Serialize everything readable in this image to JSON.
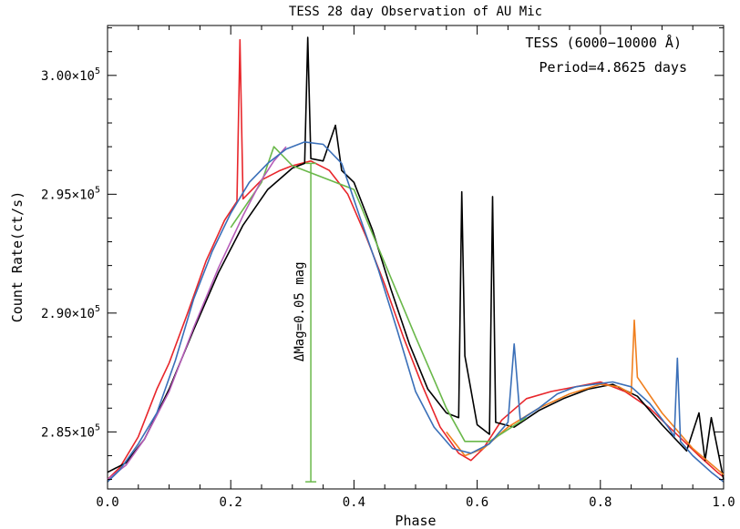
{
  "chart_data": {
    "type": "line",
    "title": "TESS 28 day Observation of AU Mic",
    "xlabel": "Phase",
    "ylabel": "Count Rate(ct/s)",
    "xlim": [
      0.0,
      1.0
    ],
    "ylim": [
      282600,
      302100
    ],
    "x_ticks": [
      {
        "value": 0.0,
        "label": "0.0"
      },
      {
        "value": 0.2,
        "label": "0.2"
      },
      {
        "value": 0.4,
        "label": "0.4"
      },
      {
        "value": 0.6,
        "label": "0.6"
      },
      {
        "value": 0.8,
        "label": "0.8"
      },
      {
        "value": 1.0,
        "label": "1.0"
      }
    ],
    "y_ticks": [
      {
        "value": 285000,
        "mantissa": "2.85",
        "times": "×10",
        "exp": "5"
      },
      {
        "value": 290000,
        "mantissa": "2.90",
        "times": "×10",
        "exp": "5"
      },
      {
        "value": 295000,
        "mantissa": "2.95",
        "times": "×10",
        "exp": "5"
      },
      {
        "value": 300000,
        "mantissa": "3.00",
        "times": "×10",
        "exp": "5"
      }
    ],
    "grid": false,
    "legend_position": "top-right",
    "legend": [
      {
        "text": "TESS (6000−10000 Å)",
        "color": "#e8262b"
      },
      {
        "text": "Period=4.8625 days",
        "color": "#3a6fb8"
      }
    ],
    "annotation": {
      "text": "ΔMag=0.05 mag",
      "color": "#6ab84a",
      "x": 0.33,
      "y_top": 296300,
      "y_bottom": 282900
    },
    "series": [
      {
        "color": "#e8262b",
        "x": [
          0.0,
          0.02,
          0.05,
          0.08,
          0.1,
          0.13,
          0.16,
          0.19,
          0.21,
          0.215,
          0.22,
          0.25,
          0.28,
          0.3,
          0.33,
          0.36,
          0.39,
          0.42,
          0.45,
          0.48,
          0.51,
          0.54,
          0.57,
          0.59,
          0.61,
          0.64,
          0.68,
          0.72,
          0.76,
          0.8,
          0.84,
          0.88,
          0.92,
          0.96,
          0.99,
          1.0
        ],
        "y": [
          283000,
          283500,
          284800,
          286800,
          287900,
          290000,
          292200,
          293900,
          294700,
          301500,
          294800,
          295600,
          296000,
          296200,
          296400,
          296000,
          295000,
          293200,
          291200,
          289000,
          287000,
          285200,
          284100,
          283800,
          284300,
          285500,
          286400,
          286700,
          286900,
          287100,
          286700,
          286000,
          285000,
          284000,
          283300,
          283100
        ]
      },
      {
        "color": "#000000",
        "x": [
          0.0,
          0.03,
          0.06,
          0.1,
          0.14,
          0.18,
          0.22,
          0.26,
          0.3,
          0.32,
          0.325,
          0.33,
          0.35,
          0.37,
          0.38,
          0.4,
          0.43,
          0.46,
          0.49,
          0.52,
          0.55,
          0.57,
          0.575,
          0.58,
          0.6,
          0.62,
          0.625,
          0.63,
          0.66,
          0.7,
          0.74,
          0.78,
          0.82,
          0.86,
          0.9,
          0.94,
          0.96,
          0.97,
          0.98,
          1.0
        ],
        "y": [
          283300,
          283700,
          284700,
          286800,
          289300,
          291700,
          293700,
          295200,
          296100,
          296300,
          301600,
          296500,
          296400,
          297900,
          296000,
          295500,
          293500,
          291000,
          288700,
          286800,
          285800,
          285600,
          295100,
          288200,
          285300,
          284900,
          294900,
          285400,
          285200,
          285900,
          286400,
          286800,
          287000,
          286500,
          285300,
          284200,
          285800,
          283800,
          285600,
          283000
        ]
      },
      {
        "color": "#f07f1e",
        "x": [
          0.55,
          0.58,
          0.61,
          0.65,
          0.7,
          0.75,
          0.8,
          0.83,
          0.85,
          0.855,
          0.86,
          0.9,
          0.95,
          1.0
        ],
        "y": [
          285000,
          284000,
          284300,
          285200,
          286000,
          286600,
          287000,
          286900,
          286600,
          289700,
          287300,
          285800,
          284300,
          283200
        ]
      },
      {
        "color": "#6ab84a",
        "x": [
          0.2,
          0.25,
          0.27,
          0.3,
          0.4,
          0.5,
          0.55,
          0.58,
          0.62,
          0.68
        ],
        "y": [
          293600,
          295500,
          297000,
          296200,
          295200,
          289000,
          286000,
          284600,
          284600,
          285600
        ]
      },
      {
        "color": "#b65db9",
        "x": [
          0.0,
          0.03,
          0.06,
          0.1,
          0.14,
          0.18,
          0.22,
          0.25,
          0.27,
          0.29
        ],
        "y": [
          283000,
          283600,
          284700,
          286700,
          289400,
          291900,
          294100,
          295600,
          296400,
          297000
        ]
      },
      {
        "color": "#3a6fb8",
        "x": [
          0.0,
          0.02,
          0.05,
          0.08,
          0.11,
          0.14,
          0.17,
          0.2,
          0.23,
          0.26,
          0.29,
          0.32,
          0.35,
          0.38,
          0.41,
          0.44,
          0.47,
          0.5,
          0.53,
          0.56,
          0.59,
          0.62,
          0.65,
          0.66,
          0.67,
          0.7,
          0.73,
          0.76,
          0.79,
          0.82,
          0.85,
          0.88,
          0.91,
          0.92,
          0.925,
          0.93,
          0.95,
          0.98,
          1.0
        ],
        "y": [
          282900,
          283400,
          284500,
          285800,
          288000,
          290600,
          292600,
          294200,
          295500,
          296300,
          296900,
          297200,
          297100,
          296300,
          294000,
          291800,
          289300,
          286700,
          285200,
          284300,
          284100,
          284500,
          285400,
          288700,
          285500,
          286000,
          286600,
          286900,
          287000,
          287100,
          286900,
          286200,
          285200,
          284800,
          288100,
          284600,
          284000,
          283300,
          282900
        ]
      }
    ]
  }
}
